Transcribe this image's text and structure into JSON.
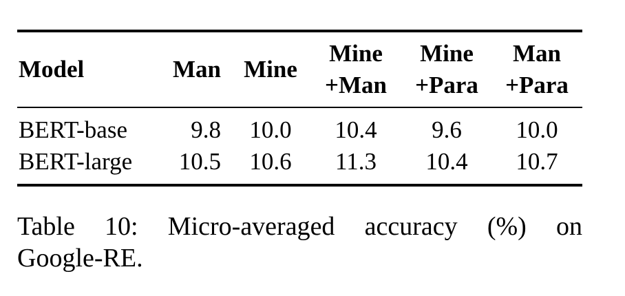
{
  "table": {
    "headers": [
      {
        "line1": "Model",
        "line2": ""
      },
      {
        "line1": "Man",
        "line2": ""
      },
      {
        "line1": "Mine",
        "line2": ""
      },
      {
        "line1": "Mine",
        "line2": "+Man"
      },
      {
        "line1": "Mine",
        "line2": "+Para"
      },
      {
        "line1": "Man",
        "line2": "+Para"
      }
    ],
    "rows": [
      {
        "model": "BERT-base",
        "values": [
          "9.8",
          "10.0",
          "10.4",
          "9.6",
          "10.0"
        ]
      },
      {
        "model": "BERT-large",
        "values": [
          "10.5",
          "10.6",
          "11.3",
          "10.4",
          "10.7"
        ]
      }
    ]
  },
  "caption": {
    "words": [
      "Table",
      "10:",
      "Micro-averaged",
      "accuracy",
      "(%)",
      "on"
    ],
    "line2": "Google-RE."
  }
}
